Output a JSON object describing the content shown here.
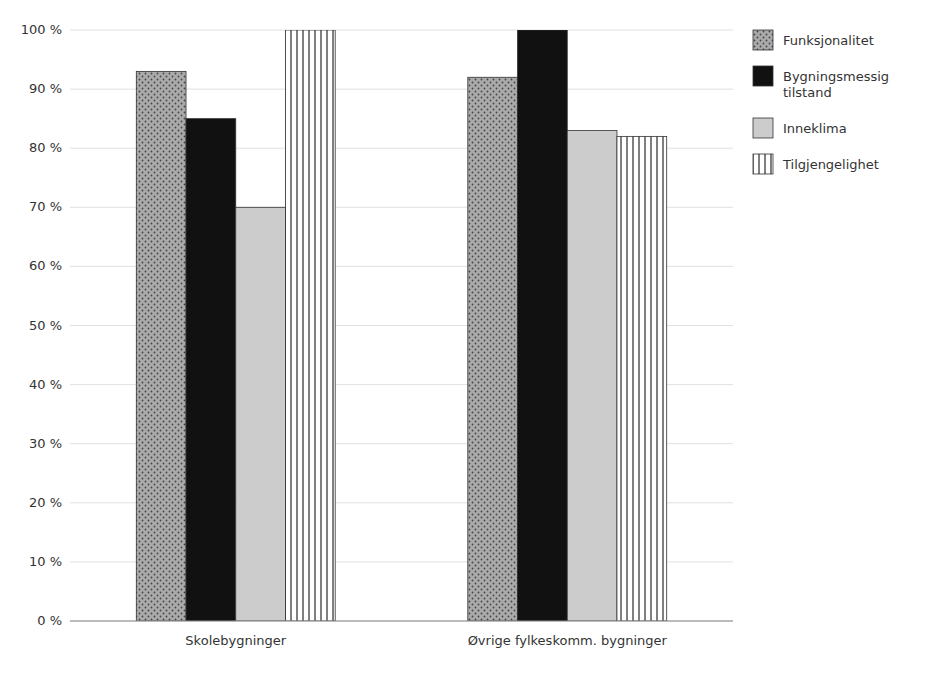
{
  "chart_data": {
    "type": "bar",
    "categories": [
      "Skolebygninger",
      "Øvrige fylkeskomm. bygninger"
    ],
    "series": [
      {
        "name": "Funksjonalitet",
        "color": "#aaaaaa",
        "values": [
          93,
          92
        ]
      },
      {
        "name": "Bygningsmessig\ntilstand",
        "color": "#111111",
        "values": [
          85,
          100
        ]
      },
      {
        "name": "Inneklima",
        "color": "#cccccc",
        "values": [
          70,
          83
        ]
      },
      {
        "name": "Tilgjengelighet",
        "color": "#ffffff",
        "values": [
          100,
          82
        ]
      }
    ],
    "ylim": [
      0,
      100
    ],
    "yticks": [
      {
        "value": 0,
        "label": "0 %"
      },
      {
        "value": 10,
        "label": "10 %"
      },
      {
        "value": 20,
        "label": "20 %"
      },
      {
        "value": 30,
        "label": "30 %"
      },
      {
        "value": 40,
        "label": "40 %"
      },
      {
        "value": 50,
        "label": "50 %"
      },
      {
        "value": 60,
        "label": "60 %"
      },
      {
        "value": 70,
        "label": "70 %"
      },
      {
        "value": 80,
        "label": "80 %"
      },
      {
        "value": 90,
        "label": "90 %"
      },
      {
        "value": 100,
        "label": "100 %"
      }
    ],
    "grid": true,
    "legend": "right"
  }
}
